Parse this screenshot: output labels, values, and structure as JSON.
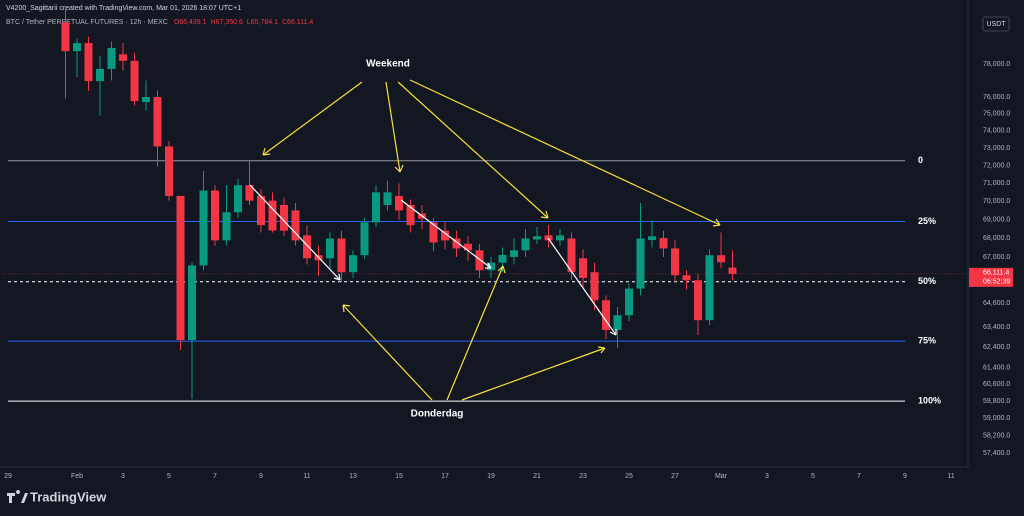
{
  "chart_data": {
    "type": "candlestick",
    "title": "V4200_Sagittarii created with TradingView.com, Mar 01, 2026 18:07 UTC+1",
    "symbol": "BTC / Tether PERPETUAL FUTURES · 12h · MEXC",
    "ohlc_legend": [
      "O66,439.1",
      "H67,350.6",
      "L65,784.1",
      "C66,111.4"
    ],
    "currency": "USDT",
    "logo": "TradingView",
    "up_color": "#089981",
    "down_color": "#f23645",
    "log_scale": true,
    "categories": [
      "29",
      null,
      null,
      null,
      null,
      null,
      "Feb",
      null,
      null,
      null,
      "3",
      null,
      null,
      null,
      "5",
      null,
      null,
      null,
      "7",
      null,
      null,
      null,
      "9",
      null,
      null,
      null,
      "11",
      null,
      null,
      null,
      "13",
      null,
      null,
      null,
      "15",
      null,
      null,
      null,
      "17",
      null,
      null,
      null,
      "19",
      null,
      null,
      null,
      "21",
      null,
      null,
      null,
      "23",
      null,
      null,
      null,
      "25",
      null,
      null,
      null,
      "27",
      null,
      null,
      null,
      "Mar",
      null,
      null,
      null,
      "3",
      null,
      null,
      null,
      "5",
      null,
      null,
      null,
      "7",
      null,
      null,
      null,
      "9",
      null,
      null,
      null,
      "11",
      null
    ],
    "open": [
      null,
      null,
      null,
      null,
      null,
      80600,
      78800,
      79300,
      76960,
      77700,
      78600,
      78200,
      75700,
      76000,
      73100,
      70300,
      62750,
      66550,
      70600,
      67880,
      69400,
      70900,
      70300,
      70040,
      69800,
      69500,
      68150,
      67090,
      66930,
      67980,
      66200,
      67090,
      68850,
      69800,
      70300,
      69800,
      69330,
      68850,
      68400,
      67980,
      67700,
      67350,
      66300,
      66700,
      67000,
      67350,
      67930,
      68150,
      67880,
      67980,
      66930,
      66200,
      64750,
      63250,
      63990,
      65350,
      67900,
      68000,
      67450,
      66040,
      65780,
      63740,
      67090,
      66439.1,
      null,
      null,
      null,
      null,
      null,
      null,
      null,
      null,
      null,
      null,
      null,
      null,
      null,
      null,
      null,
      null,
      null,
      null,
      null,
      null
    ],
    "high": [
      null,
      null,
      null,
      null,
      null,
      81500,
      79600,
      79700,
      78500,
      79400,
      79300,
      78700,
      77000,
      76400,
      73400,
      70300,
      66700,
      71700,
      70900,
      70900,
      71250,
      72280,
      70700,
      70500,
      70200,
      69900,
      68680,
      67600,
      68300,
      68400,
      67350,
      69100,
      70900,
      71150,
      71000,
      70100,
      69800,
      69100,
      68900,
      68400,
      68100,
      67700,
      67000,
      67500,
      68000,
      68500,
      68600,
      68700,
      68500,
      68300,
      67400,
      66700,
      65000,
      64400,
      65600,
      69900,
      68950,
      68400,
      67880,
      66300,
      66100,
      67400,
      68300,
      67350.6,
      null,
      null,
      null,
      null,
      null,
      null,
      null,
      null,
      null,
      null,
      null,
      null,
      null,
      null,
      null,
      null,
      null,
      null,
      null,
      null
    ],
    "low": [
      null,
      null,
      null,
      null,
      null,
      75900,
      77200,
      76360,
      74900,
      77000,
      77600,
      75500,
      75200,
      71950,
      70040,
      62260,
      59900,
      66300,
      67600,
      67600,
      69100,
      69800,
      68300,
      68300,
      68100,
      67600,
      66600,
      66000,
      66400,
      65680,
      65900,
      66900,
      68600,
      69500,
      69000,
      68300,
      68500,
      67300,
      67400,
      67000,
      66800,
      65900,
      65900,
      66200,
      66600,
      67000,
      67700,
      67500,
      67600,
      65800,
      65400,
      64250,
      62800,
      62350,
      63700,
      65000,
      67500,
      67000,
      65700,
      65300,
      63000,
      63500,
      66400,
      65784.1,
      null,
      null,
      null,
      null,
      null,
      null,
      null,
      null,
      null,
      null,
      null,
      null,
      null,
      null,
      null,
      null,
      null,
      null,
      null,
      null
    ],
    "close": [
      null,
      null,
      null,
      null,
      null,
      78800,
      79300,
      76960,
      77700,
      79000,
      78200,
      75760,
      76000,
      73100,
      70300,
      62750,
      66550,
      70600,
      67880,
      69400,
      70900,
      70040,
      68700,
      68410,
      68400,
      67880,
      66930,
      66820,
      67980,
      66200,
      67090,
      68850,
      70500,
      70500,
      69500,
      68700,
      69050,
      67770,
      67880,
      67450,
      67350,
      66300,
      66700,
      67100,
      67350,
      67980,
      68100,
      67880,
      68150,
      66200,
      65900,
      64750,
      63250,
      63990,
      65350,
      67980,
      68100,
      67450,
      66040,
      65780,
      63740,
      67090,
      66720,
      66111.4,
      null,
      null,
      null,
      null,
      null,
      null,
      null,
      null,
      null,
      null,
      null,
      null,
      null,
      null,
      null,
      null,
      null,
      null,
      null,
      null
    ],
    "ylim": [
      56820,
      80885
    ],
    "yticks": [
      {
        "value": 78000,
        "label": "78,000.0"
      },
      {
        "value": 76000,
        "label": "76,000.0"
      },
      {
        "value": 75000,
        "label": "75,000.0"
      },
      {
        "value": 74000,
        "label": "74,000.0"
      },
      {
        "value": 73000,
        "label": "73,000.0"
      },
      {
        "value": 72000,
        "label": "72,000.0"
      },
      {
        "value": 71000,
        "label": "71,000.0"
      },
      {
        "value": 70000,
        "label": "70,000.0"
      },
      {
        "value": 69000,
        "label": "69,000.0"
      },
      {
        "value": 68000,
        "label": "68,000.0"
      },
      {
        "value": 67000,
        "label": "67,000.0"
      },
      {
        "value": 64600,
        "label": "64,600.0"
      },
      {
        "value": 63400,
        "label": "63,400.0"
      },
      {
        "value": 62400,
        "label": "62,400.0"
      },
      {
        "value": 61400,
        "label": "61,400.0"
      },
      {
        "value": 60600,
        "label": "60,600.0"
      },
      {
        "value": 59800,
        "label": "59,800.0"
      },
      {
        "value": 59000,
        "label": "59,000.0"
      },
      {
        "value": 58200,
        "label": "58,200.0"
      },
      {
        "value": 57400,
        "label": "57,400.0"
      }
    ],
    "levels": [
      {
        "label": "0",
        "value": 72280,
        "color": "#9598a1",
        "dashed": false
      },
      {
        "label": "25%",
        "value": 68900,
        "color": "#2962ff",
        "dashed": false
      },
      {
        "label": "50%",
        "value": 65700,
        "color": "#ffffff",
        "dashed": true
      },
      {
        "label": "75%",
        "value": 62700,
        "color": "#2962ff",
        "dashed": false
      },
      {
        "label": "100%",
        "value": 59800,
        "color": "#ffffff",
        "dashed": false
      }
    ],
    "last_price": {
      "value": 66111.4,
      "label": "66,111.4",
      "countdown": "06:52:39",
      "color": "#f23645"
    },
    "annotations": [
      "Weekend",
      "Donderdag"
    ]
  }
}
